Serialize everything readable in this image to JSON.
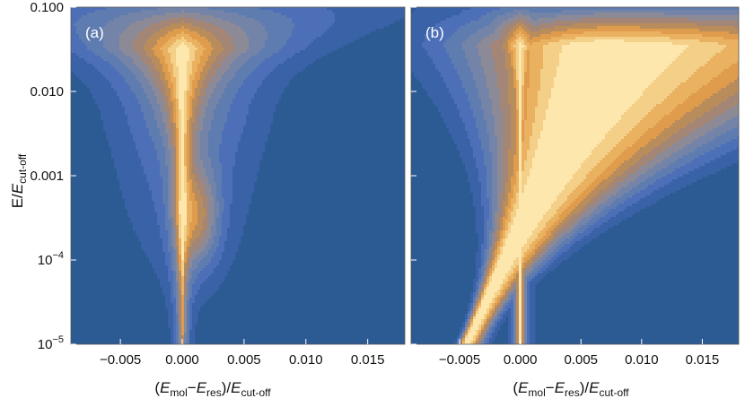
{
  "chart_data": [
    {
      "type": "heatmap",
      "panel_label": "(a)",
      "x": [
        -0.005,
        0.0,
        0.005,
        0.01,
        0.015
      ],
      "y": [
        1e-05,
        0.0001,
        0.001,
        0.01,
        0.1
      ],
      "xlim": [
        -0.009,
        0.018
      ],
      "ylim": [
        1e-05,
        0.1
      ],
      "yscale": "log",
      "grid": false,
      "legend": "none",
      "max_level_axis_position": {
        "x": 0.0,
        "log10_y": -3.55
      },
      "contour_levels": 8,
      "colormap": [
        "#2c5a93",
        "#3a62a7",
        "#4c6fb7",
        "#5f7cb0",
        "#7384a8",
        "#8c8a96",
        "#a48676",
        "#b98c5c",
        "#df9c4c",
        "#e9b160",
        "#f3cf88",
        "#fde7ad"
      ]
    },
    {
      "type": "heatmap",
      "panel_label": "(b)",
      "x": [
        -0.005,
        0.0,
        0.005,
        0.01,
        0.015
      ],
      "y": [
        1e-05,
        0.0001,
        0.001,
        0.01,
        0.1
      ],
      "xlim": [
        -0.009,
        0.018
      ],
      "ylim": [
        1e-05,
        0.1
      ],
      "yscale": "log",
      "grid": false,
      "legend": "none",
      "max_level_axis_position": {
        "x": 0.009,
        "log10_y": -1.85
      },
      "contour_levels": 9,
      "colormap": [
        "#2c5a93",
        "#3a62a7",
        "#4c6fb7",
        "#5f7cb0",
        "#7384a8",
        "#8c8a96",
        "#a48676",
        "#b98c5c",
        "#df9c4c",
        "#e9b160",
        "#f3cf88",
        "#fde7ad"
      ]
    }
  ],
  "xtick_labels": [
    "−0.005",
    "0.000",
    "0.005",
    "0.010",
    "0.015"
  ],
  "ytick_labels": [
    {
      "base": "10",
      "exp": "−5"
    },
    {
      "base": "10",
      "exp": "−4"
    },
    {
      "text": "0.001"
    },
    {
      "text": "0.010"
    },
    {
      "text": "0.100"
    }
  ],
  "xlabel": {
    "open": "(",
    "e1": "E",
    "s1": "mol",
    "minus": "−",
    "e2": "E",
    "s2": "res",
    "close": ")/",
    "e3": "E",
    "s3": "cut-off"
  },
  "ylabel": {
    "e1": "E",
    "slash": "/",
    "e2": "E",
    "s2": "cut-off"
  }
}
